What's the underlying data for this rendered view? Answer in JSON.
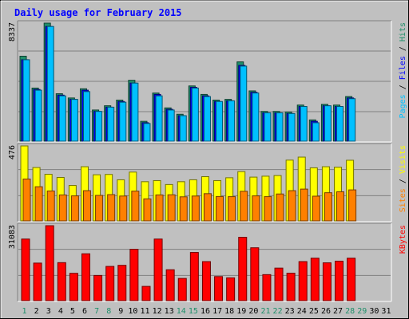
{
  "title": "Daily usage for February 2015",
  "colors": {
    "background": "#c0c0c0",
    "title": "#0000ff",
    "hits": "#1f8f6a",
    "files": "#0000ff",
    "pages": "#00c0ff",
    "visits": "#ffff00",
    "sites": "#ff8000",
    "kbytes": "#ff0000",
    "weekend_label": "#1f8f6a",
    "weekday_label": "#000000"
  },
  "chart_data": [
    {
      "type": "bar",
      "panel": "top",
      "ylabel_max": "8337",
      "legend": [
        {
          "text": "Pages",
          "color": "#00c0ff"
        },
        {
          "text": " / ",
          "color": "#000000"
        },
        {
          "text": "Files",
          "color": "#0000ff"
        },
        {
          "text": " / ",
          "color": "#000000"
        },
        {
          "text": "Hits",
          "color": "#1f8f6a"
        }
      ],
      "categories": [
        "1",
        "2",
        "3",
        "4",
        "5",
        "6",
        "7",
        "8",
        "9",
        "10",
        "11",
        "12",
        "13",
        "14",
        "15",
        "16",
        "17",
        "18",
        "19",
        "20",
        "21",
        "22",
        "23",
        "24",
        "25",
        "26",
        "27",
        "28",
        "29",
        "30",
        "31"
      ],
      "ylim": [
        0,
        8337
      ],
      "series": [
        {
          "name": "Hits",
          "values": [
            6000,
            3750,
            8337,
            3350,
            3050,
            3700,
            2200,
            2500,
            2900,
            4300,
            1400,
            3400,
            2350,
            1900,
            3900,
            3300,
            2900,
            2950,
            5600,
            3550,
            2100,
            2100,
            2050,
            2550,
            1500,
            2600,
            2550,
            3150,
            0,
            0,
            0
          ]
        },
        {
          "name": "Files",
          "values": [
            5750,
            3650,
            8100,
            3250,
            2950,
            3600,
            2100,
            2400,
            2800,
            4100,
            1300,
            3300,
            2250,
            1800,
            3800,
            3200,
            2800,
            2850,
            5350,
            3450,
            2000,
            2000,
            1950,
            2450,
            1400,
            2500,
            2450,
            3050,
            0,
            0,
            0
          ]
        },
        {
          "name": "Pages",
          "values": [
            5750,
            3600,
            8100,
            3200,
            2950,
            3500,
            2100,
            2400,
            2750,
            4100,
            1250,
            3200,
            2200,
            1800,
            3750,
            3150,
            2800,
            2850,
            5300,
            3400,
            2000,
            2000,
            1950,
            2450,
            1300,
            2500,
            2450,
            3000,
            0,
            0,
            0
          ]
        }
      ]
    },
    {
      "type": "bar",
      "panel": "middle",
      "ylabel_max": "476",
      "legend": [
        {
          "text": "Sites",
          "color": "#ff8000"
        },
        {
          "text": " / ",
          "color": "#000000"
        },
        {
          "text": "Visits",
          "color": "#ffff00"
        }
      ],
      "ylim": [
        0,
        476
      ],
      "series": [
        {
          "name": "Visits",
          "values": [
            476,
            339,
            296,
            276,
            225,
            344,
            293,
            295,
            261,
            310,
            249,
            256,
            231,
            249,
            261,
            281,
            256,
            274,
            313,
            278,
            284,
            288,
            386,
            405,
            337,
            344,
            341,
            385,
            0,
            0,
            0
          ]
        },
        {
          "name": "Sites",
          "values": [
            266,
            217,
            190,
            165,
            159,
            192,
            162,
            167,
            158,
            189,
            140,
            165,
            166,
            153,
            158,
            173,
            155,
            154,
            188,
            159,
            154,
            171,
            192,
            202,
            157,
            179,
            185,
            197,
            0,
            0,
            0
          ]
        }
      ]
    },
    {
      "type": "bar",
      "panel": "bottom",
      "ylabel_max": "31083",
      "legend": [
        {
          "text": "KBytes",
          "color": "#ff0000"
        }
      ],
      "ylim": [
        0,
        31083
      ],
      "series": [
        {
          "name": "KBytes",
          "values": [
            25550,
            15580,
            31083,
            15770,
            11340,
            19440,
            10450,
            14200,
            14650,
            21300,
            5920,
            25550,
            12820,
            9220,
            19980,
            16200,
            9990,
            9470,
            26280,
            21930,
            10800,
            13500,
            11400,
            16200,
            17620,
            15690,
            16380,
            17620,
            0,
            0,
            0
          ]
        }
      ]
    }
  ],
  "weekend_days": [
    "1",
    "7",
    "8",
    "14",
    "15",
    "21",
    "22",
    "28",
    "29"
  ]
}
